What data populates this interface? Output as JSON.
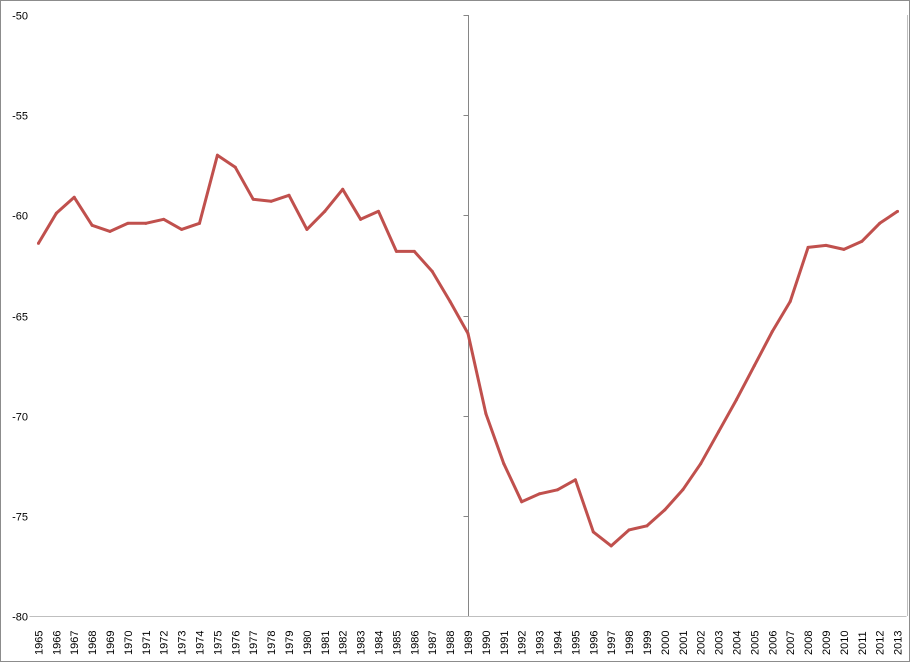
{
  "chart_data": {
    "type": "line",
    "title": "",
    "xlabel": "",
    "ylabel": "",
    "ylim": [
      -80,
      -50
    ],
    "yticks": [
      -50,
      -55,
      -60,
      -65,
      -70,
      -75,
      -80
    ],
    "grid": false,
    "legend": "none",
    "y_axis_crosses_at": "1989",
    "line_color": "#C0504D",
    "categories": [
      "1965",
      "1966",
      "1967",
      "1968",
      "1969",
      "1970",
      "1971",
      "1972",
      "1973",
      "1974",
      "1975",
      "1976",
      "1977",
      "1978",
      "1979",
      "1980",
      "1981",
      "1982",
      "1983",
      "1984",
      "1985",
      "1986",
      "1987",
      "1988",
      "1989",
      "1990",
      "1991",
      "1992",
      "1993",
      "1994",
      "1995",
      "1996",
      "1997",
      "1998",
      "1999",
      "2000",
      "2001",
      "2002",
      "2003",
      "2004",
      "2005",
      "2006",
      "2007",
      "2008",
      "2009",
      "2010",
      "2011",
      "2012",
      "2013"
    ],
    "series": [
      {
        "values": [
          -61.4,
          -59.9,
          -59.1,
          -60.5,
          -60.8,
          -60.4,
          -60.4,
          -60.2,
          -60.7,
          -60.4,
          -57.0,
          -57.6,
          -59.2,
          -59.3,
          -59.0,
          -60.7,
          -59.8,
          -58.7,
          -60.2,
          -59.8,
          -61.8,
          -61.8,
          -62.8,
          -64.3,
          -65.9,
          -69.9,
          -72.4,
          -74.3,
          -73.9,
          -73.7,
          -73.2,
          -75.8,
          -76.5,
          -75.7,
          -75.5,
          -74.7,
          -73.7,
          -72.4,
          -70.8,
          -69.2,
          -67.5,
          -65.8,
          -64.3,
          -61.6,
          -61.5,
          -61.7,
          -61.3,
          -60.4,
          -59.8
        ]
      }
    ]
  }
}
